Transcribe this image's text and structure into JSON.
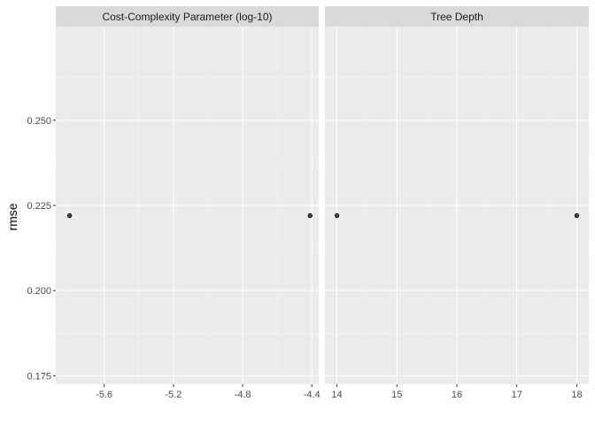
{
  "chart_data": {
    "type": "scatter",
    "ylabel": "rmse",
    "ylim": [
      0.1725,
      0.2775
    ],
    "y_ticks": [
      0.175,
      0.2,
      0.225,
      0.25
    ],
    "y_tick_labels": [
      "0.175",
      "0.200",
      "0.225",
      "0.250"
    ],
    "panels": [
      {
        "title": "Cost-Complexity Parameter (log-10)",
        "xlim": [
          -5.88,
          -4.36
        ],
        "x_ticks": [
          -5.6,
          -5.2,
          -4.8,
          -4.4
        ],
        "x_tick_labels": [
          "-5.6",
          "-5.2",
          "-4.8",
          "-4.4"
        ],
        "x_minor": [
          -5.8,
          -5.4,
          -5.0,
          -4.6
        ],
        "points": [
          {
            "x": -5.8,
            "y": 0.222
          },
          {
            "x": -4.41,
            "y": 0.222
          }
        ]
      },
      {
        "title": "Tree Depth",
        "xlim": [
          13.8,
          18.2
        ],
        "x_ticks": [
          14,
          15,
          16,
          17,
          18
        ],
        "x_tick_labels": [
          "14",
          "15",
          "16",
          "17",
          "18"
        ],
        "x_minor": [
          14.5,
          15.5,
          16.5,
          17.5
        ],
        "points": [
          {
            "x": 14,
            "y": 0.222
          },
          {
            "x": 18,
            "y": 0.222
          }
        ]
      }
    ],
    "grid": true,
    "colors": {
      "panel_bg": "#ebebeb",
      "strip_bg": "#d9d9d9",
      "grid_major": "#ffffff",
      "grid_minor": "#f5f5f5",
      "point_fill": "#4d4d4d",
      "point_stroke": "#000000",
      "tick_color": "#333333"
    }
  }
}
